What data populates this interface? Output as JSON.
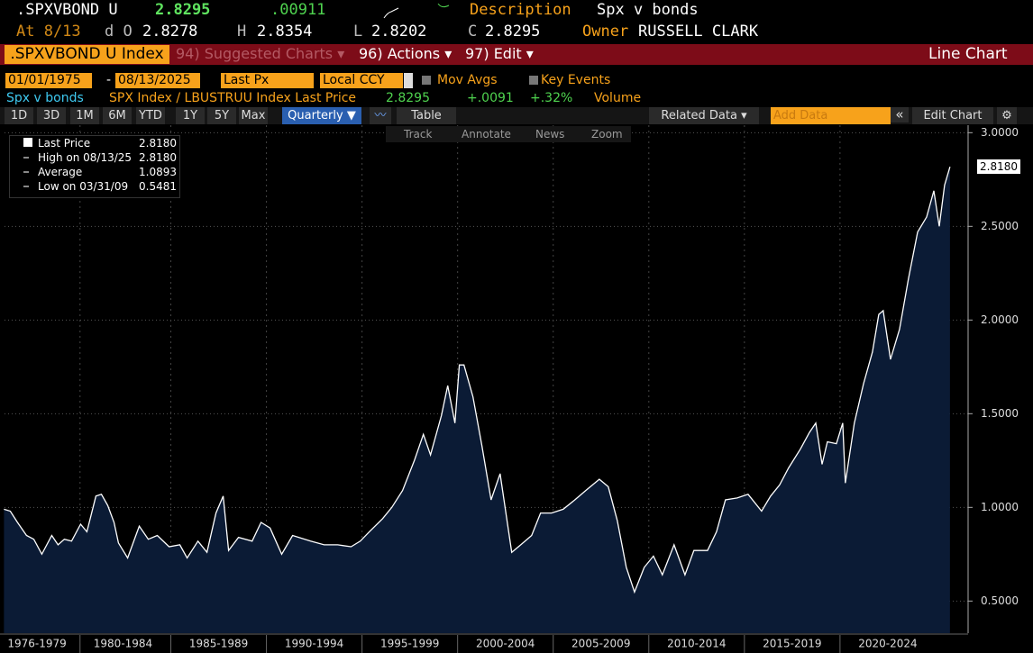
{
  "header": {
    "ticker": ".SPXVBOND U",
    "last": "2.8295",
    "change": ".00911",
    "description_label": "Description",
    "description": "Spx v bonds",
    "at": "At 8/13",
    "open_label": "d O",
    "open": "2.8278",
    "high_label": "H",
    "high": "2.8354",
    "low_label": "L",
    "low": "2.8202",
    "close_label": "C",
    "close": "2.8295",
    "owner_label": "Owner",
    "owner": "RUSSELL CLARK"
  },
  "toolbar": {
    "security": ".SPXVBOND U Index",
    "menus": [
      "94) Suggested Charts ▾",
      "96) Actions ▾",
      "97) Edit ▾"
    ],
    "chart_type": "Line Chart"
  },
  "settings": {
    "start_date": "01/01/1975",
    "separator": "-",
    "end_date": "08/13/2025",
    "field": "Last Px",
    "currency": "Local CCY",
    "mov_avgs": "Mov Avgs",
    "key_events": "Key Events"
  },
  "series_info": {
    "name": "Spx v bonds",
    "description": "SPX Index / LBUSTRUU Index Last Price",
    "last": "2.8295",
    "change": "+.0091",
    "pct_change": "+.32%",
    "volume": "Volume"
  },
  "buttons": {
    "periods": [
      "1D",
      "3D",
      "1M",
      "6M",
      "YTD",
      "1Y",
      "5Y",
      "Max"
    ],
    "frequency": "Quarterly ▼",
    "table": "Table",
    "related_data": "Related Data ▾",
    "add_data": "Add Data",
    "collapse": "«",
    "edit_chart": "Edit Chart"
  },
  "tools": [
    "Track",
    "Annotate",
    "News",
    "Zoom"
  ],
  "legend": [
    {
      "label": "Last Price",
      "value": "2.8180"
    },
    {
      "label": "High on 08/13/25",
      "value": "2.8180"
    },
    {
      "label": "Average",
      "value": "1.0893"
    },
    {
      "label": "Low on 03/31/09",
      "value": "0.5481"
    }
  ],
  "chart_data": {
    "type": "area",
    "color": "#ffffff",
    "fill": "#0b1b35",
    "x": [
      1976.27,
      1976.6,
      1976.98,
      1977.45,
      1977.83,
      1978.25,
      1978.77,
      1979.1,
      1979.43,
      1979.81,
      1980.28,
      1980.61,
      1981.08,
      1981.37,
      1981.7,
      1982.03,
      1982.26,
      1982.74,
      1983.35,
      1983.82,
      1984.29,
      1984.91,
      1985.47,
      1985.85,
      1986.42,
      1986.89,
      1987.36,
      1987.74,
      1988.02,
      1988.54,
      1989.25,
      1989.72,
      1990.19,
      1990.8,
      1991.37,
      1992.31,
      1993.02,
      1993.73,
      1994.43,
      1994.91,
      1995.38,
      1996.08,
      1996.56,
      1997.12,
      1997.74,
      1998.21,
      1998.58,
      1999.15,
      1999.48,
      1999.86,
      2000.09,
      2000.33,
      2000.8,
      2001.27,
      2001.75,
      2002.22,
      2002.83,
      2003.3,
      2003.87,
      2004.34,
      2004.91,
      2005.52,
      2006.13,
      2006.7,
      2007.41,
      2007.88,
      2008.35,
      2008.82,
      2009.25,
      2009.76,
      2010.24,
      2010.71,
      2011.32,
      2011.89,
      2012.36,
      2013.07,
      2013.54,
      2014.01,
      2014.62,
      2015.19,
      2015.9,
      2016.37,
      2016.84,
      2017.31,
      2017.92,
      2018.4,
      2018.73,
      2019.06,
      2019.34,
      2019.81,
      2020.14,
      2020.28,
      2020.75,
      2021.23,
      2021.7,
      2022.03,
      2022.26,
      2022.64,
      2023.11,
      2023.58,
      2024.06,
      2024.53,
      2024.91,
      2025.19,
      2025.47,
      2025.75
    ],
    "values": [
      0.99,
      0.98,
      0.92,
      0.85,
      0.83,
      0.75,
      0.85,
      0.8,
      0.83,
      0.82,
      0.91,
      0.87,
      1.06,
      1.07,
      1.01,
      0.92,
      0.81,
      0.73,
      0.9,
      0.83,
      0.85,
      0.79,
      0.8,
      0.73,
      0.82,
      0.76,
      0.97,
      1.06,
      0.77,
      0.84,
      0.82,
      0.92,
      0.89,
      0.75,
      0.85,
      0.82,
      0.8,
      0.8,
      0.79,
      0.82,
      0.87,
      0.94,
      1.0,
      1.09,
      1.25,
      1.39,
      1.28,
      1.49,
      1.65,
      1.45,
      1.76,
      1.76,
      1.59,
      1.33,
      1.04,
      1.18,
      0.76,
      0.8,
      0.85,
      0.97,
      0.97,
      0.99,
      1.04,
      1.09,
      1.15,
      1.11,
      0.93,
      0.68,
      0.5481,
      0.68,
      0.74,
      0.64,
      0.8,
      0.64,
      0.77,
      0.77,
      0.87,
      1.04,
      1.05,
      1.07,
      0.98,
      1.06,
      1.12,
      1.21,
      1.31,
      1.4,
      1.45,
      1.23,
      1.35,
      1.34,
      1.45,
      1.13,
      1.45,
      1.66,
      1.83,
      2.03,
      2.05,
      1.79,
      1.95,
      2.22,
      2.47,
      2.55,
      2.69,
      2.5,
      2.72,
      2.818
    ],
    "xlim": [
      1976.3,
      2026.7
    ],
    "xticks": [
      {
        "value": 1978,
        "label": "1976-1979"
      },
      {
        "value": 1982.5,
        "label": "1980-1984"
      },
      {
        "value": 1987.5,
        "label": "1985-1989"
      },
      {
        "value": 1992.5,
        "label": "1990-1994"
      },
      {
        "value": 1997.5,
        "label": "1995-1999"
      },
      {
        "value": 2002.5,
        "label": "2000-2004"
      },
      {
        "value": 2007.5,
        "label": "2005-2009"
      },
      {
        "value": 2012.5,
        "label": "2010-2014"
      },
      {
        "value": 2017.5,
        "label": "2015-2019"
      },
      {
        "value": 2022.5,
        "label": "2020-2024"
      }
    ],
    "ylim": [
      0.29,
      3.04
    ],
    "yticks": [
      {
        "value": 0.5,
        "label": "0.5000"
      },
      {
        "value": 1,
        "label": "1.0000"
      },
      {
        "value": 1.5,
        "label": "1.5000"
      },
      {
        "value": 2,
        "label": "2.0000"
      },
      {
        "value": 2.5,
        "label": "2.5000"
      },
      {
        "value": 3,
        "label": "3.0000"
      }
    ],
    "grid": true
  }
}
